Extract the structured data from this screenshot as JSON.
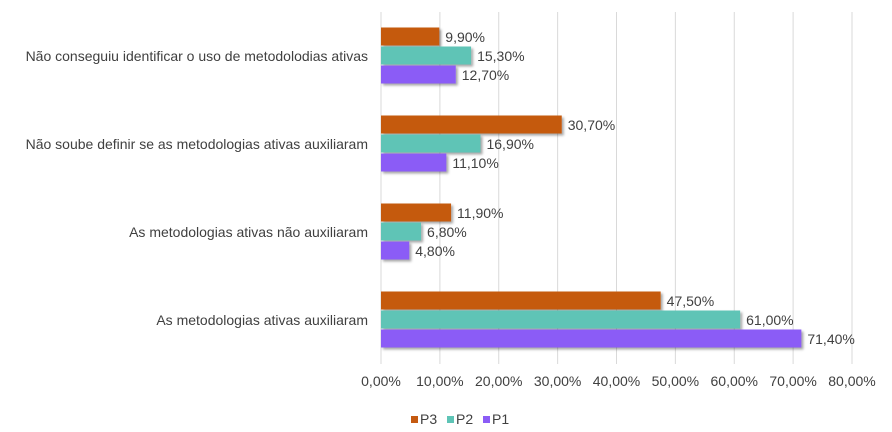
{
  "chart_data": {
    "type": "bar",
    "orientation": "horizontal",
    "title": "",
    "xlabel": "",
    "ylabel": "",
    "xlim": [
      0,
      80
    ],
    "x_ticks": [
      "0,00%",
      "10,00%",
      "20,00%",
      "30,00%",
      "40,00%",
      "50,00%",
      "60,00%",
      "70,00%",
      "80,00%"
    ],
    "grid": "vertical",
    "legend_position": "bottom",
    "categories": [
      "Não conseguiu identificar o uso de metodolodias ativas",
      "Não soube definir se as metodologias ativas auxiliaram",
      "As metodologias ativas não auxiliaram",
      "As metodologias ativas auxiliaram"
    ],
    "series": [
      {
        "name": "P3",
        "color": "#c55a11",
        "values": [
          9.9,
          30.7,
          11.9,
          47.5
        ],
        "labels": [
          "9,90%",
          "30,70%",
          "11,90%",
          "47,50%"
        ]
      },
      {
        "name": "P2",
        "color": "#5ec4b6",
        "values": [
          15.3,
          16.9,
          6.8,
          61.0
        ],
        "labels": [
          "15,30%",
          "16,90%",
          "6,80%",
          "61,00%"
        ]
      },
      {
        "name": "P1",
        "color": "#8b5cf6",
        "values": [
          12.7,
          11.1,
          4.8,
          71.4
        ],
        "labels": [
          "12,70%",
          "11,10%",
          "4,80%",
          "71,40%"
        ]
      }
    ]
  }
}
